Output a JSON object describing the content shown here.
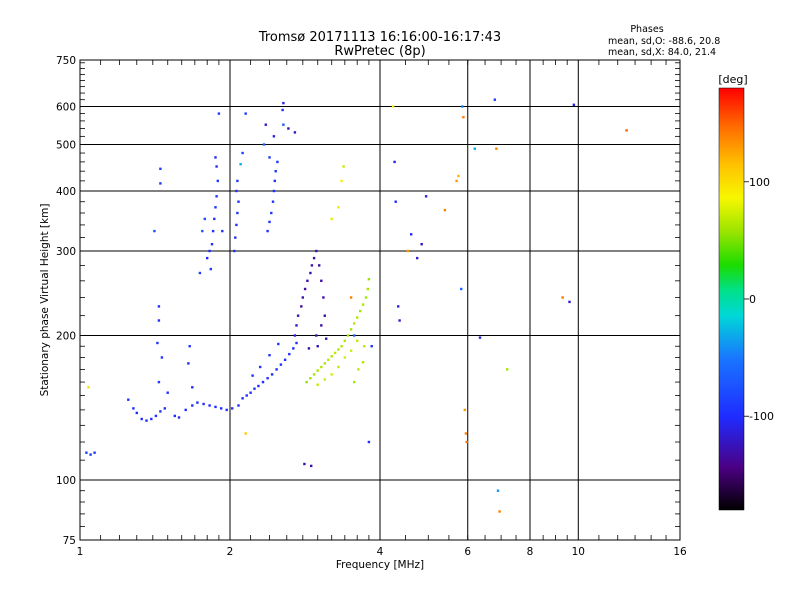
{
  "chart_data": {
    "type": "scatter",
    "title_line1": "Tromsø 20171113 16:16:00-16:17:43",
    "title_line2": "RwPretec (8p)",
    "stats": {
      "heading": "Phases",
      "line1": "mean, sd,O: -88.6, 20.8",
      "line2": "mean, sd,X:  84.0, 21.4"
    },
    "xlabel": "Frequency [MHz]",
    "ylabel": "Stationary phase Virtual Height [km]",
    "x_scale": "log",
    "y_scale": "log",
    "xlim": [
      1,
      16
    ],
    "ylim": [
      75,
      750
    ],
    "x_ticks": [
      1,
      2,
      4,
      6,
      8,
      10,
      16
    ],
    "x_tick_labels": [
      "1",
      "2",
      "4",
      "6",
      "8",
      "10",
      "16"
    ],
    "y_ticks": [
      75,
      100,
      200,
      300,
      400,
      500,
      600,
      750
    ],
    "y_tick_labels": [
      "75",
      "100",
      "200",
      "300",
      "400",
      "500",
      "600",
      "750"
    ],
    "grid": true,
    "colorbar": {
      "label": "[deg]",
      "range": [
        -180,
        180
      ],
      "ticks": [
        100,
        0,
        -100
      ],
      "tick_labels": [
        "100",
        "0",
        "-100"
      ]
    },
    "series": [
      {
        "points": [
          [
            1.03,
            114,
            -85
          ],
          [
            1.05,
            113,
            -88
          ],
          [
            1.07,
            114,
            -90
          ],
          [
            1.04,
            156,
            100
          ],
          [
            1.25,
            147,
            -95
          ],
          [
            1.28,
            141,
            -98
          ],
          [
            1.3,
            138,
            -100
          ],
          [
            1.33,
            134,
            -102
          ],
          [
            1.36,
            133,
            -99
          ],
          [
            1.39,
            134,
            -97
          ],
          [
            1.42,
            136,
            -95
          ],
          [
            1.45,
            139,
            -94
          ],
          [
            1.48,
            141,
            -96
          ],
          [
            1.5,
            152,
            -98
          ],
          [
            1.44,
            160,
            -92
          ],
          [
            1.46,
            180,
            -95
          ],
          [
            1.43,
            193,
            -97
          ],
          [
            1.44,
            215,
            -100
          ],
          [
            1.44,
            230,
            -98
          ],
          [
            1.41,
            330,
            -75
          ],
          [
            1.45,
            415,
            -90
          ],
          [
            1.45,
            445,
            -88
          ],
          [
            1.55,
            136,
            -100
          ],
          [
            1.58,
            135,
            -99
          ],
          [
            1.63,
            140,
            -98
          ],
          [
            1.68,
            143,
            -97
          ],
          [
            1.72,
            145,
            -99
          ],
          [
            1.77,
            144,
            -98
          ],
          [
            1.82,
            143,
            -100
          ],
          [
            1.87,
            142,
            -99
          ],
          [
            1.92,
            141,
            -98
          ],
          [
            1.97,
            140,
            -97
          ],
          [
            2.02,
            141,
            -96
          ],
          [
            2.08,
            143,
            -98
          ],
          [
            1.68,
            156,
            -100
          ],
          [
            1.65,
            175,
            -98
          ],
          [
            1.66,
            190,
            -96
          ],
          [
            1.8,
            290,
            -100
          ],
          [
            1.82,
            300,
            -98
          ],
          [
            1.84,
            310,
            -96
          ],
          [
            1.85,
            330,
            -95
          ],
          [
            1.86,
            350,
            -97
          ],
          [
            1.87,
            370,
            -94
          ],
          [
            1.88,
            390,
            -95
          ],
          [
            1.89,
            420,
            -93
          ],
          [
            1.88,
            450,
            -96
          ],
          [
            1.87,
            470,
            -98
          ],
          [
            1.9,
            580,
            -92
          ],
          [
            1.78,
            350,
            -80
          ],
          [
            1.76,
            330,
            -70
          ],
          [
            1.74,
            270,
            -88
          ],
          [
            1.83,
            275,
            -90
          ],
          [
            1.93,
            330,
            -94
          ],
          [
            2.04,
            300,
            -95
          ],
          [
            2.05,
            320,
            -96
          ],
          [
            2.06,
            340,
            -94
          ],
          [
            2.07,
            360,
            -95
          ],
          [
            2.08,
            380,
            -96
          ],
          [
            2.06,
            400,
            -97
          ],
          [
            2.07,
            420,
            -93
          ],
          [
            2.12,
            480,
            -85
          ],
          [
            2.15,
            580,
            -90
          ],
          [
            2.1,
            455,
            -30
          ],
          [
            2.38,
            330,
            -95
          ],
          [
            2.4,
            345,
            -96
          ],
          [
            2.42,
            360,
            -94
          ],
          [
            2.44,
            380,
            -95
          ],
          [
            2.45,
            400,
            -97
          ],
          [
            2.46,
            420,
            -96
          ],
          [
            2.47,
            440,
            -94
          ],
          [
            2.49,
            460,
            -95
          ],
          [
            2.4,
            470,
            -90
          ],
          [
            2.45,
            520,
            -110
          ],
          [
            2.36,
            550,
            -120
          ],
          [
            2.56,
            550,
            -70
          ],
          [
            2.56,
            610,
            -110
          ],
          [
            2.55,
            590,
            -100
          ],
          [
            2.62,
            540,
            -130
          ],
          [
            2.7,
            530,
            -120
          ],
          [
            2.34,
            500,
            -60
          ],
          [
            2.12,
            148,
            -100
          ],
          [
            2.16,
            150,
            -98
          ],
          [
            2.2,
            152,
            -99
          ],
          [
            2.24,
            155,
            -97
          ],
          [
            2.28,
            157,
            -100
          ],
          [
            2.33,
            160,
            -98
          ],
          [
            2.38,
            163,
            -97
          ],
          [
            2.43,
            166,
            -99
          ],
          [
            2.48,
            170,
            -98
          ],
          [
            2.53,
            174,
            -96
          ],
          [
            2.58,
            178,
            -97
          ],
          [
            2.63,
            183,
            -99
          ],
          [
            2.68,
            188,
            -100
          ],
          [
            2.72,
            193,
            -98
          ],
          [
            2.22,
            165,
            -96
          ],
          [
            2.3,
            172,
            -97
          ],
          [
            2.4,
            182,
            -95
          ],
          [
            2.5,
            192,
            -94
          ],
          [
            2.15,
            125,
            110
          ],
          [
            2.7,
            200,
            -110
          ],
          [
            2.72,
            210,
            -120
          ],
          [
            2.74,
            220,
            -125
          ],
          [
            2.78,
            230,
            -130
          ],
          [
            2.8,
            240,
            -128
          ],
          [
            2.83,
            250,
            -132
          ],
          [
            2.86,
            260,
            -130
          ],
          [
            2.9,
            270,
            -128
          ],
          [
            2.92,
            280,
            -126
          ],
          [
            2.95,
            290,
            -132
          ],
          [
            2.98,
            300,
            -130
          ],
          [
            3.02,
            280,
            -135
          ],
          [
            3.05,
            260,
            -130
          ],
          [
            3.08,
            240,
            -128
          ],
          [
            3.1,
            220,
            -132
          ],
          [
            3.05,
            210,
            -130
          ],
          [
            2.98,
            200,
            -128
          ],
          [
            3.0,
            190,
            -126
          ],
          [
            2.88,
            188,
            -130
          ],
          [
            3.12,
            197,
            -130
          ],
          [
            2.82,
            108,
            -130
          ],
          [
            2.91,
            107,
            -128
          ],
          [
            2.85,
            160,
            55
          ],
          [
            2.9,
            163,
            58
          ],
          [
            2.95,
            166,
            60
          ],
          [
            3.0,
            169,
            62
          ],
          [
            3.05,
            172,
            64
          ],
          [
            3.1,
            175,
            63
          ],
          [
            3.15,
            178,
            65
          ],
          [
            3.2,
            181,
            66
          ],
          [
            3.25,
            184,
            68
          ],
          [
            3.3,
            187,
            64
          ],
          [
            3.35,
            190,
            62
          ],
          [
            3.4,
            195,
            65
          ],
          [
            3.45,
            200,
            62
          ],
          [
            3.5,
            206,
            60
          ],
          [
            3.55,
            212,
            65
          ],
          [
            3.6,
            218,
            62
          ],
          [
            3.65,
            225,
            60
          ],
          [
            3.7,
            232,
            63
          ],
          [
            3.75,
            240,
            60
          ],
          [
            3.78,
            250,
            62
          ],
          [
            3.8,
            262,
            58
          ],
          [
            3.0,
            158,
            70
          ],
          [
            3.1,
            162,
            72
          ],
          [
            3.2,
            166,
            74
          ],
          [
            3.3,
            172,
            70
          ],
          [
            3.4,
            180,
            75
          ],
          [
            3.5,
            186,
            72
          ],
          [
            3.6,
            195,
            70
          ],
          [
            3.55,
            160,
            60
          ],
          [
            3.62,
            170,
            68
          ],
          [
            3.7,
            176,
            64
          ],
          [
            3.72,
            190,
            66
          ],
          [
            3.35,
            420,
            90
          ],
          [
            3.38,
            450,
            70
          ],
          [
            3.2,
            350,
            80
          ],
          [
            3.3,
            370,
            95
          ],
          [
            3.5,
            240,
            140
          ],
          [
            3.8,
            120,
            -100
          ],
          [
            3.55,
            200,
            -60
          ],
          [
            3.85,
            190,
            -95
          ],
          [
            4.25,
            600,
            90
          ],
          [
            4.28,
            460,
            -110
          ],
          [
            4.3,
            380,
            -100
          ],
          [
            4.35,
            230,
            -110
          ],
          [
            4.38,
            215,
            -115
          ],
          [
            4.55,
            300,
            130
          ],
          [
            4.62,
            325,
            -100
          ],
          [
            4.75,
            290,
            -115
          ],
          [
            4.85,
            310,
            -120
          ],
          [
            4.95,
            390,
            -110
          ],
          [
            5.4,
            365,
            140
          ],
          [
            5.7,
            420,
            130
          ],
          [
            5.75,
            430,
            120
          ],
          [
            5.82,
            250,
            -60
          ],
          [
            5.85,
            600,
            -45
          ],
          [
            5.88,
            570,
            140
          ],
          [
            5.92,
            140,
            130
          ],
          [
            5.95,
            125,
            140
          ],
          [
            5.97,
            120,
            145
          ],
          [
            6.2,
            490,
            -30
          ],
          [
            6.35,
            198,
            -110
          ],
          [
            6.8,
            620,
            -90
          ],
          [
            6.85,
            490,
            140
          ],
          [
            6.9,
            95,
            -40
          ],
          [
            6.95,
            86,
            140
          ],
          [
            7.2,
            170,
            60
          ],
          [
            9.3,
            240,
            145
          ],
          [
            9.6,
            235,
            -120
          ],
          [
            9.8,
            605,
            -110
          ],
          [
            12.5,
            535,
            150
          ]
        ]
      }
    ]
  }
}
